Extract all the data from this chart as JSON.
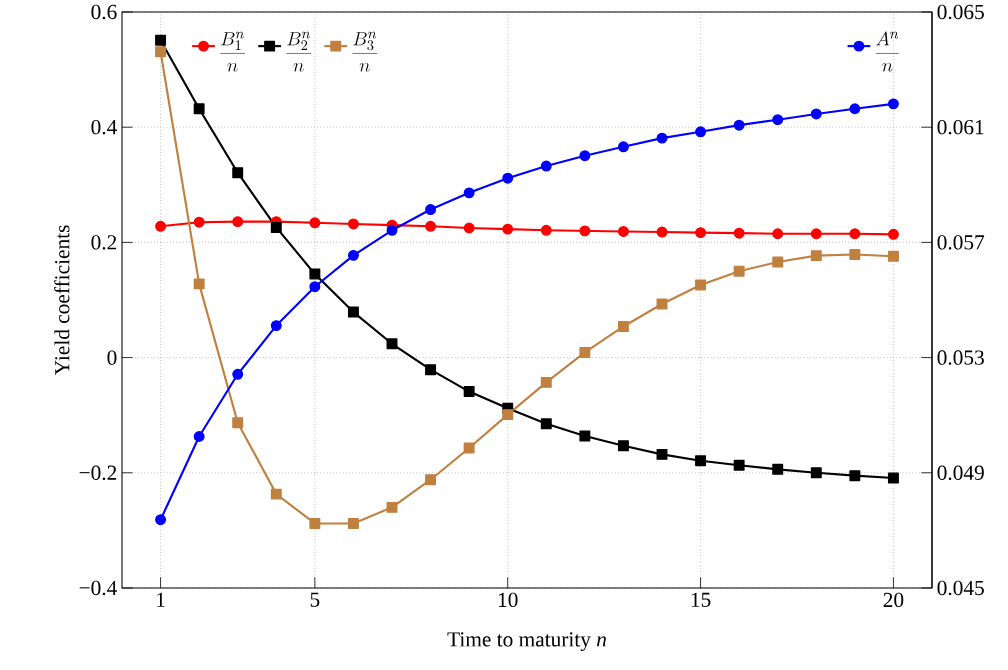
{
  "chart_data": {
    "type": "line",
    "xlabel": "Time to maturity *n*",
    "ylabel": "Yield coefficients",
    "x": [
      1,
      2,
      3,
      4,
      5,
      6,
      7,
      8,
      9,
      10,
      11,
      12,
      13,
      14,
      15,
      16,
      17,
      18,
      19,
      20
    ],
    "xlim": [
      0,
      21
    ],
    "xticks": [
      1,
      5,
      10,
      15,
      20
    ],
    "ylim": [
      -0.4,
      0.6
    ],
    "yticks": [
      {
        "value": -0.4,
        "label": "−0.4"
      },
      {
        "value": -0.2,
        "label": "−0.2"
      },
      0,
      0.2,
      0.4,
      0.6
    ],
    "y2lim": [
      0.045,
      0.065
    ],
    "y2ticks": [
      0.045,
      0.049,
      0.053,
      0.057,
      0.061,
      0.065
    ],
    "grid": true,
    "legend": "top",
    "line_style": "solid",
    "series": [
      {
        "name": "\\frac{B_1^n}{n}",
        "color": "#ff0000",
        "marker": "circle",
        "values": [
          0.228,
          0.235,
          0.236,
          0.236,
          0.234,
          0.232,
          0.23,
          0.228,
          0.225,
          0.223,
          0.221,
          0.22,
          0.219,
          0.218,
          0.217,
          0.216,
          0.215,
          0.215,
          0.215,
          0.214
        ]
      },
      {
        "name": "\\frac{B_2^n}{n}",
        "color": "#000000",
        "marker": "square",
        "values": [
          0.551,
          0.432,
          0.321,
          0.226,
          0.145,
          0.079,
          0.024,
          -0.021,
          -0.059,
          -0.088,
          -0.115,
          -0.136,
          -0.153,
          -0.168,
          -0.179,
          -0.187,
          -0.194,
          -0.2,
          -0.205,
          -0.209
        ]
      },
      {
        "name": "\\frac{B_3^n}{n}",
        "color": "#c08040",
        "marker": "square",
        "values": [
          0.531,
          0.128,
          -0.113,
          -0.237,
          -0.288,
          -0.288,
          -0.26,
          -0.212,
          -0.157,
          -0.099,
          -0.043,
          0.009,
          0.054,
          0.093,
          0.126,
          0.15,
          0.166,
          0.177,
          0.179,
          0.176
        ]
      },
      {
        "name": "\\frac{A^n}{n}",
        "color": "#0000ff",
        "marker": "circle",
        "axis": "y2",
        "values": [
          0.04737,
          0.05026,
          0.05242,
          0.05411,
          0.05546,
          0.05655,
          0.05742,
          0.05814,
          0.05872,
          0.05923,
          0.05965,
          0.06001,
          0.06032,
          0.06062,
          0.06084,
          0.06107,
          0.06126,
          0.06146,
          0.06164,
          0.06181
        ]
      }
    ]
  }
}
